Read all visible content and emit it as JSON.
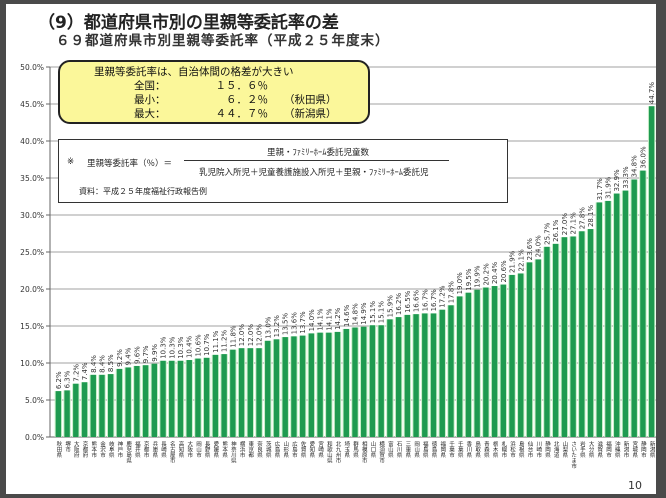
{
  "title": "（9）都道府県市別の里親等委託率の差",
  "subtitle": "６９都道府県市別里親等委託率（平成２５年度末）",
  "summary": {
    "heading": "里親等委託率は、自治体間の格差が大きい",
    "national_label": "全国：",
    "national_value": "１５．６％",
    "min_label": "最小：",
    "min_value": "６．２％",
    "min_place": "（秋田県）",
    "max_label": "最大：",
    "max_value": "４４．７％",
    "max_place": "（新潟県）"
  },
  "formula": {
    "mark": "※",
    "lhs": "里親等委託率（％）＝",
    "numerator": "里親・ﾌｧﾐﾘｰﾎｰﾑ委託児童数",
    "denominator": "乳児院入所児＋児童養護施設入所児＋里親・ﾌｧﾐﾘｰﾎｰﾑ委託児",
    "source": "資料：平成２５年度福祉行政報告例"
  },
  "page_number": "10",
  "colors": {
    "bar": "#1e9a50",
    "bar_shadow": "#c8f0c8",
    "grid": "#a0a0a0",
    "summary_bg": "#fbf79a"
  },
  "chart_data": {
    "type": "bar",
    "title": "６９都道府県市別里親等委託率（平成２５年度末）",
    "xlabel": "",
    "ylabel": "",
    "ylim": [
      0,
      50
    ],
    "yticks": [
      "0.0%",
      "5.0%",
      "10.0%",
      "15.0%",
      "20.0%",
      "25.0%",
      "30.0%",
      "35.0%",
      "40.0%",
      "45.0%",
      "50.0%"
    ],
    "grid": true,
    "categories": [
      "秋田県",
      "堺市",
      "大阪府",
      "京都府",
      "熊本市",
      "金沢市",
      "岐阜県",
      "神戸市",
      "鹿児島県",
      "福井県",
      "京都市",
      "兵庫県",
      "長崎県",
      "名古屋市",
      "高知県",
      "大阪市",
      "岡山市",
      "長野県",
      "愛媛県",
      "熊本県",
      "神奈川県",
      "横浜市",
      "東京都",
      "奈良県",
      "茨城県",
      "広島県",
      "山形県",
      "広島市",
      "佐賀県",
      "愛知県",
      "宮崎県",
      "和歌山県",
      "北九州市",
      "埼玉県",
      "群馬県",
      "相模原市",
      "山口県",
      "横須賀市",
      "富山県",
      "石川県",
      "三重県",
      "岡山県",
      "福島県",
      "徳島県",
      "福岡県",
      "千葉市",
      "千葉県",
      "香川県",
      "鳥取県",
      "青森県",
      "栃木県",
      "札幌市",
      "浜松市",
      "島根県",
      "仙台市",
      "川崎市",
      "静岡県",
      "北海道",
      "山梨県",
      "さいたま市",
      "岩手県",
      "大分県",
      "滋賀県",
      "福岡市",
      "沖縄県",
      "新潟市",
      "宮城県",
      "静岡市",
      "新潟県"
    ],
    "values": [
      6.2,
      6.3,
      7.2,
      7.4,
      8.4,
      8.4,
      8.5,
      9.2,
      9.4,
      9.6,
      9.7,
      9.9,
      10.3,
      10.3,
      10.3,
      10.4,
      10.6,
      10.7,
      11.1,
      11.2,
      11.8,
      12.0,
      12.0,
      12.0,
      13.0,
      13.2,
      13.5,
      13.6,
      13.7,
      14.0,
      14.1,
      14.1,
      14.2,
      14.6,
      14.8,
      14.9,
      15.1,
      15.1,
      15.9,
      16.2,
      16.5,
      16.6,
      16.7,
      16.7,
      17.2,
      17.8,
      19.0,
      19.5,
      19.9,
      20.2,
      20.4,
      20.6,
      21.9,
      22.1,
      23.6,
      24.0,
      25.7,
      26.1,
      27.0,
      27.1,
      27.8,
      28.1,
      31.7,
      31.9,
      32.9,
      33.3,
      34.8,
      36.0,
      44.7
    ]
  }
}
